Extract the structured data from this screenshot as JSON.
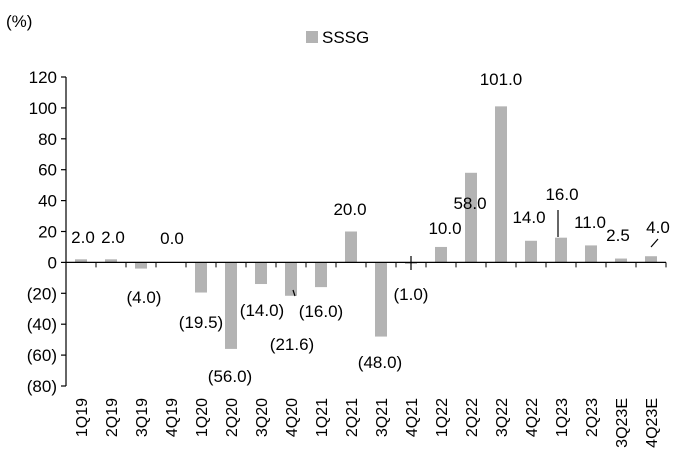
{
  "chart_data": {
    "type": "bar",
    "unit_label": "(%)",
    "legend": {
      "position": "top-center",
      "entries": [
        "SSSG"
      ]
    },
    "categories": [
      "1Q19",
      "2Q19",
      "3Q19",
      "4Q19",
      "1Q20",
      "2Q20",
      "3Q20",
      "4Q20",
      "1Q21",
      "2Q21",
      "3Q21",
      "4Q21",
      "1Q22",
      "2Q22",
      "3Q22",
      "4Q22",
      "1Q23",
      "2Q23",
      "3Q23E",
      "4Q23E"
    ],
    "series": [
      {
        "name": "SSSG",
        "color": "#b3b3b3",
        "values": [
          2.0,
          2.0,
          -4.0,
          0.0,
          -19.5,
          -56.0,
          -14.0,
          -21.6,
          -16.0,
          20.0,
          -48.0,
          -1.0,
          10.0,
          58.0,
          101.0,
          14.0,
          16.0,
          11.0,
          2.5,
          4.0
        ],
        "labels": [
          "2.0",
          "2.0",
          "(4.0)",
          "0.0",
          "(19.5)",
          "(56.0)",
          "(14.0)",
          "(21.6)",
          "(16.0)",
          "20.0",
          "(48.0)",
          "(1.0)",
          "10.0",
          "58.0",
          "101.0",
          "14.0",
          "16.0",
          "11.0",
          "2.5",
          "4.0"
        ]
      }
    ],
    "ylim": [
      -80,
      120
    ],
    "yticks": [
      -80,
      -60,
      -40,
      -20,
      0,
      20,
      40,
      60,
      80,
      100,
      120
    ],
    "ytick_labels": [
      "(80)",
      "(60)",
      "(40)",
      "(20)",
      "0",
      "20",
      "40",
      "60",
      "80",
      "100",
      "120"
    ],
    "grid": false,
    "title": "",
    "xlabel": "",
    "ylabel": ""
  }
}
